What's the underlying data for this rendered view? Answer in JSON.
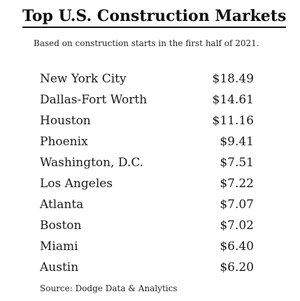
{
  "title": "Top U.S. Construction Markets",
  "subtitle": "Based on construction starts in the first half of 2021.",
  "markets": [
    {
      "city": "New York City",
      "value": "$18.49"
    },
    {
      "city": "Dallas-Fort Worth",
      "value": "$14.61"
    },
    {
      "city": "Houston",
      "value": "$11.16"
    },
    {
      "city": "Phoenix",
      "value": "$9.41"
    },
    {
      "city": "Washington, D.C.",
      "value": "$7.51"
    },
    {
      "city": "Los Angeles",
      "value": "$7.22"
    },
    {
      "city": "Atlanta",
      "value": "$7.07"
    },
    {
      "city": "Boston",
      "value": "$7.02"
    },
    {
      "city": "Miami",
      "value": "$6.40"
    },
    {
      "city": "Austin",
      "value": "$6.20"
    }
  ],
  "source": "Source: Dodge Data & Analytics"
}
